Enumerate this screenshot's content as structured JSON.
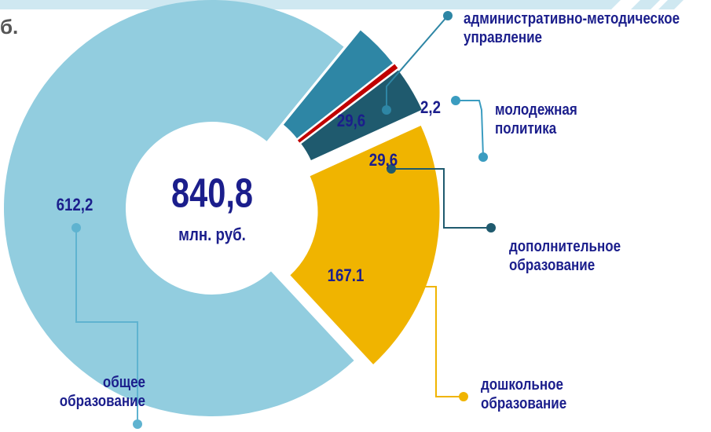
{
  "corner_text": "б.",
  "chart_data": {
    "type": "pie",
    "donut": true,
    "center_text": "840,8",
    "center_subtext": "млн. руб.",
    "categories": [
      "административно-методическое управление",
      "молодежная политика",
      "дополнительное образование",
      "дошкольное образование",
      "общее образование"
    ],
    "values": [
      29.6,
      2.2,
      29.6,
      167.1,
      612.2
    ],
    "value_labels": [
      "29,6",
      "2,2",
      "29,6",
      "167.1",
      "612,2"
    ],
    "colors": [
      "#2e86a5",
      "#c00000",
      "#1f5a6e",
      "#f0b400",
      "#92cddf"
    ]
  }
}
